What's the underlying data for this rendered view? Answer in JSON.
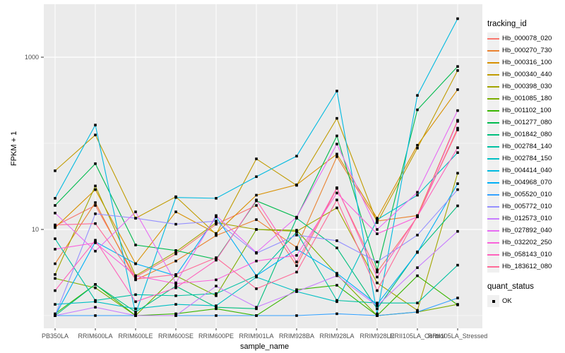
{
  "figure": {
    "bg": "#ffffff",
    "panel_bg": "#ebebeb",
    "grid_color": "#ffffff",
    "point_color": "#000000",
    "tick_text_color": "#4d4d4d"
  },
  "axes": {
    "y_title": "FPKM + 1",
    "x_title": "sample_name",
    "y_scale": "log10",
    "y_major_ticks": [
      {
        "label": "10",
        "value": 10
      },
      {
        "label": "1000",
        "value": 1000
      }
    ],
    "y_minor_ticks": [
      1,
      100
    ]
  },
  "legend": {
    "tracking_title": "tracking_id",
    "quant_title": "quant_status",
    "quant_items": [
      {
        "label": "OK",
        "marker": "black-square"
      }
    ]
  },
  "chart_data": {
    "type": "line",
    "title": "",
    "xlabel": "sample_name",
    "ylabel": "FPKM + 1",
    "yscale": "log10",
    "ylim": [
      0.7,
      4100
    ],
    "grid": true,
    "legend_position": "right",
    "point_marker": "black-square",
    "categories": [
      "PB350LA",
      "RRIM600LA",
      "RRIM600LE",
      "RRIM600SE",
      "RRIM600PE",
      "RRIM901LA",
      "RRIM928BA",
      "RRIM928LA",
      "RRIM928LE",
      "RRII105LA_Control",
      "RRII105LA_Stressed"
    ],
    "series": [
      {
        "name": "Hb_000078_020",
        "color": "#F8766D",
        "quant_status": "OK",
        "values": [
          11.0,
          19.0,
          2.8,
          5.2,
          11.5,
          19.0,
          3.8,
          30.0,
          3.2,
          14.0,
          150
        ]
      },
      {
        "name": "Hb_000270_730",
        "color": "#EA8331",
        "quant_status": "OK",
        "values": [
          4.0,
          20.5,
          2.6,
          4.3,
          8.5,
          13.0,
          6.2,
          70.0,
          12.5,
          14.5,
          185
        ]
      },
      {
        "name": "Hb_000316_100",
        "color": "#D89000",
        "quant_status": "OK",
        "values": [
          10.5,
          29.0,
          4.0,
          16.0,
          9.0,
          25.0,
          33.0,
          75.0,
          13.5,
          95.0,
          420
        ]
      },
      {
        "name": "Hb_000340_440",
        "color": "#C09B00",
        "quant_status": "OK",
        "values": [
          48.0,
          125.0,
          13.5,
          24.0,
          8.8,
          66.0,
          32.5,
          195.0,
          12.0,
          88.0,
          700
        ]
      },
      {
        "name": "Hb_000398_030",
        "color": "#A3A500",
        "quant_status": "OK",
        "values": [
          3.0,
          32.0,
          2.9,
          5.5,
          12.0,
          10.0,
          9.5,
          17.8,
          2.4,
          1.15,
          45.0
        ]
      },
      {
        "name": "Hb_001085_180",
        "color": "#7CAE00",
        "quant_status": "OK",
        "values": [
          2.7,
          2.1,
          1.0,
          2.9,
          1.7,
          10.0,
          9.8,
          3.0,
          1.0,
          1.1,
          1.35
        ]
      },
      {
        "name": "Hb_001102_100",
        "color": "#39B600",
        "quant_status": "OK",
        "values": [
          1.05,
          2.3,
          1.0,
          1.05,
          1.2,
          1.0,
          2.0,
          2.25,
          1.0,
          2.9,
          1.33
        ]
      },
      {
        "name": "Hb_001277_080",
        "color": "#00BB4E",
        "quant_status": "OK",
        "values": [
          19.0,
          58.0,
          6.6,
          5.7,
          4.5,
          21.5,
          13.8,
          122.0,
          3.4,
          245.0,
          780
        ]
      },
      {
        "name": "Hb_001842_080",
        "color": "#00BF7D",
        "quant_status": "OK",
        "values": [
          1.0,
          2.3,
          1.1,
          2.2,
          1.25,
          1.2,
          13.5,
          6.1,
          1.2,
          5.5,
          18.8
        ]
      },
      {
        "name": "Hb_002784_140",
        "color": "#00C1A3",
        "quant_status": "OK",
        "values": [
          7.8,
          1.5,
          1.75,
          1.7,
          1.8,
          2.9,
          9.3,
          1.5,
          1.4,
          1.4,
          3.85
        ]
      },
      {
        "name": "Hb_002784_150",
        "color": "#00BFC4",
        "quant_status": "OK",
        "values": [
          1.35,
          1.45,
          1.2,
          1.35,
          1.3,
          2.8,
          1.9,
          1.45,
          13.0,
          25.0,
          78.0
        ]
      },
      {
        "name": "Hb_004414_040",
        "color": "#00BAE0",
        "quant_status": "OK",
        "values": [
          23.0,
          163.0,
          1.05,
          23.5,
          23.0,
          41.0,
          71.0,
          405.0,
          1.05,
          360.0,
          2800
        ]
      },
      {
        "name": "Hb_004968_070",
        "color": "#00B0F6",
        "quant_status": "OK",
        "values": [
          1.0,
          7.2,
          4.0,
          2.9,
          14.0,
          2.9,
          5.9,
          3.1,
          1.35,
          5.4,
          34.0
        ]
      },
      {
        "name": "Hb_005520_010",
        "color": "#35A2FF",
        "quant_status": "OK",
        "values": [
          1.0,
          1.0,
          1.0,
          1.0,
          1.0,
          1.0,
          1.0,
          1.05,
          1.0,
          1.1,
          1.6
        ]
      },
      {
        "name": "Hb_005772_010",
        "color": "#9590FF",
        "quant_status": "OK",
        "values": [
          1.0,
          15.2,
          13.5,
          11.5,
          12.5,
          5.3,
          8.6,
          7.4,
          4.2,
          8.6,
          29.0
        ]
      },
      {
        "name": "Hb_012573_010",
        "color": "#C77CFF",
        "quant_status": "OK",
        "values": [
          1.0,
          1.25,
          1.0,
          1.0,
          2.2,
          1.25,
          1.9,
          2.9,
          1.3,
          3.6,
          9.5
        ]
      },
      {
        "name": "Hb_027892_040",
        "color": "#E76BF3",
        "quant_status": "OK",
        "values": [
          15.5,
          5.6,
          16.0,
          2.4,
          14.5,
          5.4,
          13.9,
          98.0,
          10.0,
          27.0,
          240
        ]
      },
      {
        "name": "Hb_032202_250",
        "color": "#FA62DB",
        "quant_status": "OK",
        "values": [
          5.9,
          7.0,
          2.9,
          2.35,
          2.6,
          4.3,
          5.0,
          26.5,
          8.9,
          14.0,
          180
        ]
      },
      {
        "name": "Hb_058143_010",
        "color": "#FF62BC",
        "quant_status": "OK",
        "values": [
          1.95,
          7.5,
          1.45,
          2.1,
          4.4,
          22.0,
          4.2,
          30.5,
          2.8,
          14.2,
          89.0
        ]
      },
      {
        "name": "Hb_183612_080",
        "color": "#FF6A98",
        "quant_status": "OK",
        "values": [
          11.3,
          11.7,
          2.65,
          3.0,
          4.7,
          2.05,
          3.2,
          22.0,
          1.95,
          14.5,
          143
        ]
      }
    ]
  }
}
